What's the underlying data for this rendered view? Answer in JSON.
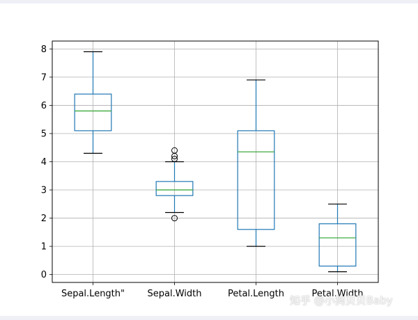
{
  "chart_data": {
    "type": "boxplot",
    "categories": [
      "Sepal.Length\"",
      "Sepal.Width",
      "Petal.Length",
      "Petal.Width"
    ],
    "boxes": [
      {
        "whisker_low": 4.3,
        "q1": 5.1,
        "median": 5.8,
        "q3": 6.4,
        "whisker_high": 7.9,
        "outliers": []
      },
      {
        "whisker_low": 2.2,
        "q1": 2.8,
        "median": 3.0,
        "q3": 3.3,
        "whisker_high": 4.0,
        "outliers": [
          4.4,
          4.2,
          4.1,
          2.0
        ]
      },
      {
        "whisker_low": 1.0,
        "q1": 1.6,
        "median": 4.35,
        "q3": 5.1,
        "whisker_high": 6.9,
        "outliers": []
      },
      {
        "whisker_low": 0.1,
        "q1": 0.3,
        "median": 1.3,
        "q3": 1.8,
        "whisker_high": 2.5,
        "outliers": []
      }
    ],
    "yticks": [
      "0",
      "1",
      "2",
      "3",
      "4",
      "5",
      "6",
      "7",
      "8"
    ],
    "ylim": [
      -0.28,
      8.28
    ],
    "grid": true,
    "colors": {
      "box": "#1f77b4",
      "median": "#2ca02c",
      "grid": "#b0b0b0",
      "axis": "#000000"
    }
  },
  "watermark": "知乎 @小狗贝贝Baby"
}
